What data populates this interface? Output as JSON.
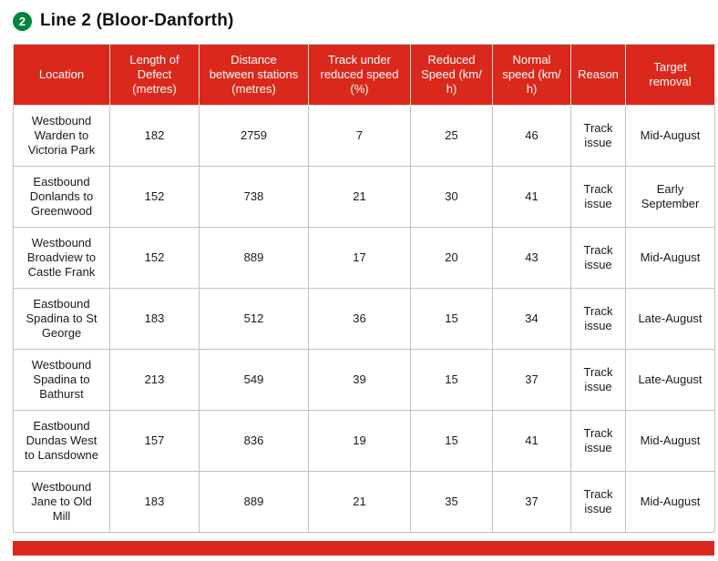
{
  "page": {
    "badge": "2",
    "title": "Line 2 (Bloor-Danforth)"
  },
  "colors": {
    "header_bg": "#da291c",
    "badge_bg": "#00853e",
    "border": "#c3c3c3",
    "text": "#1a1a1a"
  },
  "table": {
    "header_keys": [
      "location",
      "length-of-defect",
      "distance-between-stations",
      "track-under-reduced-speed",
      "reduced-speed",
      "normal-speed",
      "reason",
      "target-removal"
    ],
    "headers": [
      "Location",
      "Length of\nDefect\n(metres)",
      "Distance\nbetween stations\n(metres)",
      "Track under\nreduced speed\n(%)",
      "Reduced\nSpeed (km/\nh)",
      "Normal\nspeed (km/\nh)",
      "Reason",
      "Target\nremoval"
    ],
    "rows": [
      [
        "Westbound\nWarden to\nVictoria Park",
        "182",
        "2759",
        "7",
        "25",
        "46",
        "Track\nissue",
        "Mid-August"
      ],
      [
        "Eastbound\nDonlands to\nGreenwood",
        "152",
        "738",
        "21",
        "30",
        "41",
        "Track\nissue",
        "Early\nSeptember"
      ],
      [
        "Westbound\nBroadview to\nCastle Frank",
        "152",
        "889",
        "17",
        "20",
        "43",
        "Track\nissue",
        "Mid-August"
      ],
      [
        "Eastbound\nSpadina to St\nGeorge",
        "183",
        "512",
        "36",
        "15",
        "34",
        "Track\nissue",
        "Late-August"
      ],
      [
        "Westbound\nSpadina to\nBathurst",
        "213",
        "549",
        "39",
        "15",
        "37",
        "Track\nissue",
        "Late-August"
      ],
      [
        "Eastbound\nDundas West\nto Lansdowne",
        "157",
        "836",
        "19",
        "15",
        "41",
        "Track\nissue",
        "Mid-August"
      ],
      [
        "Westbound\nJane to Old\nMill",
        "183",
        "889",
        "21",
        "35",
        "37",
        "Track\nissue",
        "Mid-August"
      ]
    ]
  }
}
